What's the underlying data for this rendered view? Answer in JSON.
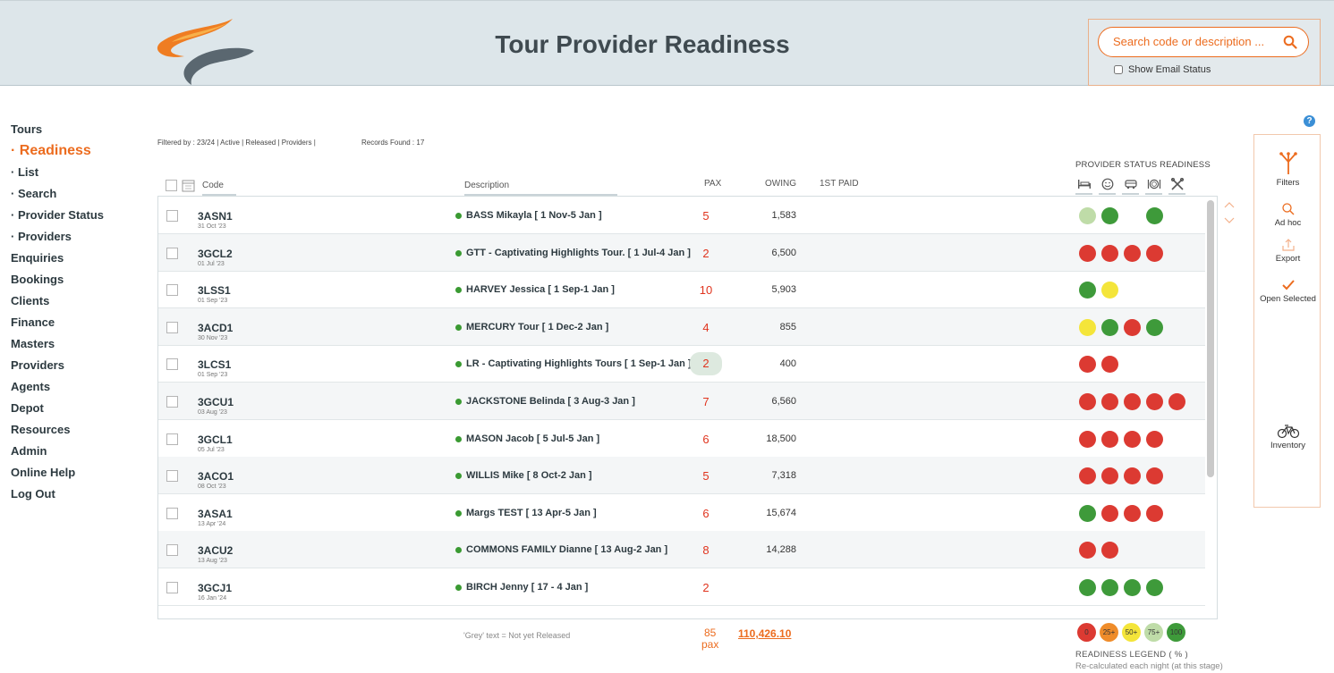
{
  "header": {
    "title": "Tour Provider Readiness",
    "search_placeholder": "Search code or description ...",
    "show_email_status": "Show Email Status"
  },
  "nav": {
    "items": [
      {
        "label": "Tours",
        "type": "main"
      },
      {
        "label": "· Readiness",
        "type": "active"
      },
      {
        "label": "· List",
        "type": "sub"
      },
      {
        "label": "· Search",
        "type": "sub"
      },
      {
        "label": "· Provider Status",
        "type": "sub"
      },
      {
        "label": "· Providers",
        "type": "sub"
      },
      {
        "label": "Enquiries",
        "type": "main"
      },
      {
        "label": "Bookings",
        "type": "main"
      },
      {
        "label": "Clients",
        "type": "main"
      },
      {
        "label": "Finance",
        "type": "main"
      },
      {
        "label": "Masters",
        "type": "main"
      },
      {
        "label": "Providers",
        "type": "main"
      },
      {
        "label": "Agents",
        "type": "main"
      },
      {
        "label": "Depot",
        "type": "main"
      },
      {
        "label": "Resources",
        "type": "main"
      },
      {
        "label": "Admin",
        "type": "main"
      },
      {
        "label": "Online Help",
        "type": "main"
      },
      {
        "label": "Log Out",
        "type": "main"
      }
    ]
  },
  "filter": {
    "filtered_by": "Filtered by : 23/24 | Active | Released | Providers |",
    "records_found": "Records Found : 17"
  },
  "columns": {
    "code": "Code",
    "description": "Description",
    "pax": "PAX",
    "owing": "OWING",
    "first_paid": "1ST PAID",
    "provider_status": "PROVIDER  STATUS READINESS"
  },
  "provider_types": [
    "bed-icon",
    "smiley-icon",
    "bus-icon",
    "dining-icon",
    "tools-icon"
  ],
  "rows": [
    {
      "code": "3ASN1",
      "date": "31 Oct '23",
      "desc": "BASS Mikayla  [ 1 Nov-5 Jan ]",
      "pax": "5",
      "owing": "1,583",
      "status": [
        "lightgreen",
        "green",
        "empty",
        "green"
      ]
    },
    {
      "code": "3GCL2",
      "date": "01 Jul '23",
      "desc": "GTT - Captivating Highlights Tour.  [ 1 Jul-4 Jan ]",
      "pax": "2",
      "owing": "6,500",
      "status": [
        "red",
        "red",
        "red",
        "red"
      ]
    },
    {
      "code": "3LSS1",
      "date": "01 Sep '23",
      "desc": "HARVEY Jessica  [ 1 Sep-1 Jan ]",
      "pax": "10",
      "owing": "5,903",
      "status": [
        "green",
        "yellow"
      ]
    },
    {
      "code": "3ACD1",
      "date": "30 Nov '23",
      "desc": "MERCURY Tour  [ 1 Dec-2 Jan ]",
      "pax": "4",
      "owing": "855",
      "status": [
        "yellow",
        "green",
        "red",
        "green"
      ]
    },
    {
      "code": "3LCS1",
      "date": "01 Sep '23",
      "desc": "LR - Captivating Highlights Tours  [ 1 Sep-1 Jan ]",
      "pax": "2",
      "owing": "400",
      "status": [
        "red",
        "red"
      ],
      "highlight": true
    },
    {
      "code": "3GCU1",
      "date": "03 Aug '23",
      "desc": "JACKSTONE Belinda  [ 3 Aug-3 Jan ]",
      "pax": "7",
      "owing": "6,560",
      "status": [
        "red",
        "red",
        "red",
        "red",
        "red"
      ]
    },
    {
      "code": "3GCL1",
      "date": "05 Jul '23",
      "desc": "MASON Jacob  [ 5 Jul-5 Jan ]",
      "pax": "6",
      "owing": "18,500",
      "status": [
        "red",
        "red",
        "red",
        "red"
      ]
    },
    {
      "code": "3ACO1",
      "date": "08 Oct '23",
      "desc": "WILLIS Mike  [ 8 Oct-2 Jan ]",
      "pax": "5",
      "owing": "7,318",
      "status": [
        "red",
        "red",
        "red",
        "red"
      ]
    },
    {
      "code": "3ASA1",
      "date": "13 Apr '24",
      "desc": "Margs TEST  [ 13 Apr-5 Jan ]",
      "pax": "6",
      "owing": "15,674",
      "status": [
        "green",
        "red",
        "red",
        "red"
      ]
    },
    {
      "code": "3ACU2",
      "date": "13 Aug '23",
      "desc": "COMMONS FAMILY Dianne  [ 13 Aug-2 Jan ]",
      "pax": "8",
      "owing": "14,288",
      "status": [
        "red",
        "red"
      ]
    },
    {
      "code": "3GCJ1",
      "date": "16 Jan '24",
      "desc": "BIRCH Jenny  [ 17 - 4 Jan ]",
      "pax": "2",
      "owing": "",
      "status": [
        "green",
        "green",
        "green",
        "green"
      ]
    }
  ],
  "totals": {
    "grey_note": "'Grey' text = Not yet Released",
    "pax": "85",
    "pax_unit": "pax",
    "owing": "110,426.10"
  },
  "legend": {
    "items": [
      {
        "label": "0",
        "color": "#dc3a32"
      },
      {
        "label": "25+",
        "color": "#ef8c2a"
      },
      {
        "label": "50+",
        "color": "#f4e53a"
      },
      {
        "label": "75+",
        "color": "#bfdca8"
      },
      {
        "label": "100",
        "color": "#3e9a3a"
      }
    ],
    "title": "READINESS LEGEND ( % )",
    "subtitle": "Re-calculated each night (at this stage)"
  },
  "actions": {
    "filters": "Filters",
    "adhoc": "Ad hoc",
    "export": "Export",
    "open_selected": "Open Selected",
    "inventory": "Inventory"
  },
  "help": "?",
  "colors": {
    "accent": "#ec6c1f",
    "header_bg": "#dde6ea",
    "status_red": "#dc3a32",
    "status_green": "#3e9a3a",
    "status_yellow": "#f4e53a",
    "status_lightgreen": "#bfdca8"
  }
}
